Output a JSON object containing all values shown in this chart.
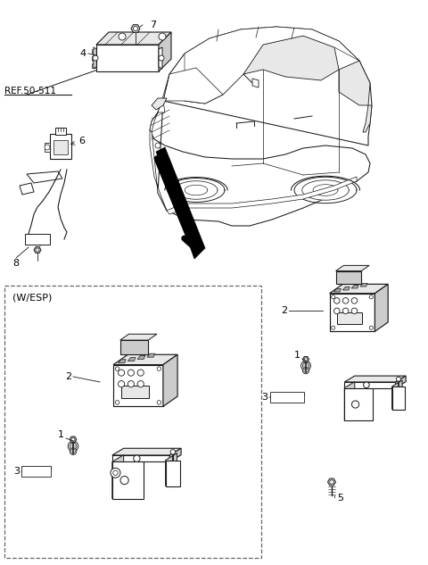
{
  "background_color": "#ffffff",
  "line_color": "#1a1a1a",
  "text_color": "#000000",
  "ref_label": "REF.50-511",
  "wesp_label": "(W/ESP)",
  "figure_size": [
    4.8,
    6.33
  ],
  "dpi": 100,
  "arrow_color": "#111111",
  "dashed_border_color": "#666666",
  "gray_light": "#e8e8e8",
  "gray_mid": "#cccccc",
  "gray_dark": "#aaaaaa"
}
